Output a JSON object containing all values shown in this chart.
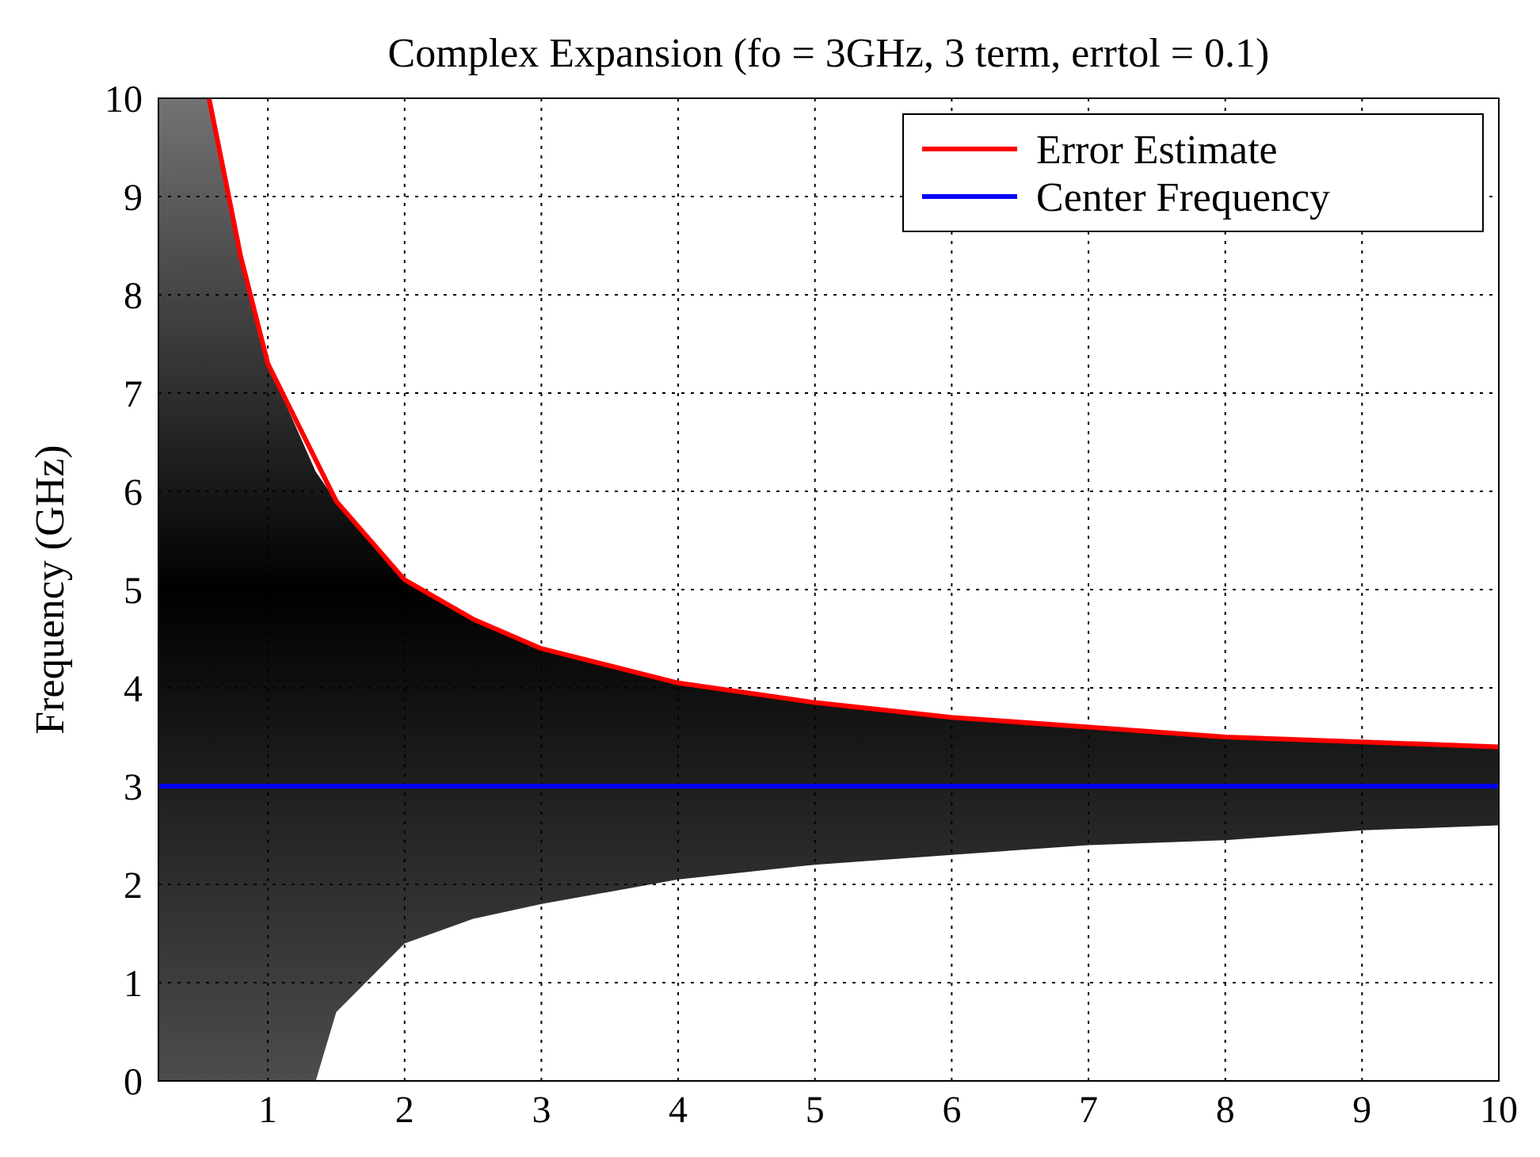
{
  "chart_data": {
    "type": "line",
    "title": "Complex Expansion (fo = 3GHz, 3 term, errtol = 0.1)",
    "ylabel": "Frequency (GHz)",
    "xlim": [
      0.2,
      10
    ],
    "ylim": [
      0,
      10
    ],
    "xticks": [
      1,
      2,
      3,
      4,
      5,
      6,
      7,
      8,
      9,
      10
    ],
    "yticks": [
      0,
      1,
      2,
      3,
      4,
      5,
      6,
      7,
      8,
      9,
      10
    ],
    "grid": true,
    "legend": "top right",
    "line_style": "solid",
    "series": [
      {
        "name": "Error Estimate",
        "color": "#ff0000",
        "x": [
          0.57,
          0.7,
          0.8,
          1,
          1.5,
          2,
          2.5,
          3,
          4,
          5,
          6,
          7,
          8,
          9,
          10
        ],
        "values": [
          10,
          9.1,
          8.4,
          7.3,
          5.9,
          5.1,
          4.7,
          4.4,
          4.05,
          3.85,
          3.7,
          3.6,
          3.5,
          3.45,
          3.4
        ]
      },
      {
        "name": "Center Frequency",
        "color": "#0000ff",
        "x": [
          0.2,
          0.57,
          0.7,
          0.8,
          1,
          1.35,
          1.5,
          2,
          2.5,
          3,
          4,
          5,
          6,
          7,
          8,
          9,
          10
        ],
        "values": [
          3,
          3,
          3,
          3,
          3,
          3,
          3,
          3,
          3,
          3,
          3,
          3,
          3,
          3,
          3,
          3,
          3
        ],
        "lower": [
          0,
          0,
          0,
          0,
          0,
          0,
          0.7,
          1.4,
          1.65,
          1.8,
          2.05,
          2.2,
          2.3,
          2.4,
          2.45,
          2.55,
          2.6
        ],
        "upper": [
          10,
          10,
          9.1,
          8.4,
          7.3,
          6.2,
          5.9,
          5.1,
          4.7,
          4.4,
          4.05,
          3.85,
          3.7,
          3.6,
          3.5,
          3.45,
          3.4
        ]
      }
    ]
  }
}
